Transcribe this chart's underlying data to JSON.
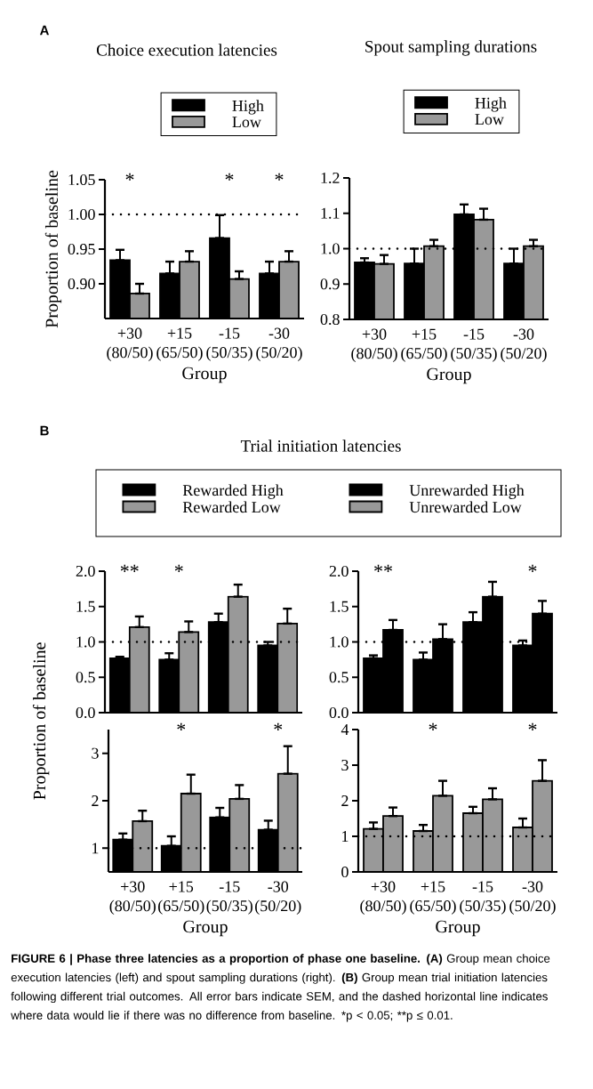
{
  "chart_data": [
    {
      "type": "bar",
      "title": "Choice execution latencies",
      "xlabel": "Group",
      "ylabel": "Proportion of baseline",
      "categories": [
        "+30 (80/50)",
        "+15 (65/50)",
        "-15 (50/35)",
        "-30 (50/20)"
      ],
      "series": [
        {
          "name": "High",
          "color": "#000000",
          "values": [
            0.934,
            0.915,
            0.966,
            0.915
          ],
          "errors": [
            [
              0.934,
              0.949
            ],
            [
              0.915,
              0.932
            ],
            [
              0.966,
              0.999
            ],
            [
              0.915,
              0.932
            ]
          ]
        },
        {
          "name": "Low",
          "color": "#999999",
          "values": [
            0.886,
            0.932,
            0.907,
            0.932
          ],
          "errors": [
            [
              0.886,
              0.9
            ],
            [
              0.932,
              0.947
            ],
            [
              0.907,
              0.918
            ],
            [
              0.932,
              0.947
            ]
          ]
        }
      ],
      "ylim": [
        0.85,
        1.05
      ],
      "yticks": [
        {
          "value": 0.9,
          "label": "0.90"
        },
        {
          "value": 0.95,
          "label": "0.95"
        },
        {
          "value": 1.0,
          "label": "1.00"
        },
        {
          "value": 1.05,
          "label": "1.05"
        }
      ],
      "legend": "top",
      "ref_lines": [
        {
          "axis": "y",
          "value": 1,
          "color": "#000000",
          "line_style": "dotted"
        }
      ],
      "annotations": [
        "A",
        "*",
        "*",
        "*"
      ]
    },
    {
      "type": "bar",
      "title": "Spout sampling durations",
      "xlabel": "Group",
      "categories": [
        "+30 (80/50)",
        "+15 (65/50)",
        "-15 (50/35)",
        "-30 (50/20)"
      ],
      "series": [
        {
          "name": "High",
          "color": "#000000",
          "values": [
            0.961,
            0.958,
            1.097,
            0.958
          ],
          "errors": [
            [
              0.961,
              0.973
            ],
            [
              0.958,
              1.0
            ],
            [
              1.097,
              1.125
            ],
            [
              0.958,
              1.0
            ]
          ]
        },
        {
          "name": "Low",
          "color": "#999999",
          "values": [
            0.957,
            1.007,
            1.082,
            1.007
          ],
          "errors": [
            [
              0.957,
              0.982
            ],
            [
              1.007,
              1.025
            ],
            [
              1.082,
              1.113
            ],
            [
              1.007,
              1.025
            ]
          ]
        }
      ],
      "ylim": [
        0.8,
        1.2
      ],
      "yticks": [
        {
          "value": 0.8,
          "label": "0.8"
        },
        {
          "value": 0.9,
          "label": "0.9"
        },
        {
          "value": 1.0,
          "label": "1.0"
        },
        {
          "value": 1.1,
          "label": "1.1"
        },
        {
          "value": 1.2,
          "label": "1.2"
        }
      ],
      "legend": "top",
      "ref_lines": [
        {
          "axis": "y",
          "value": 1,
          "color": "#000000",
          "line_style": "dotted"
        }
      ]
    },
    {
      "type": "bar",
      "title": "Trial initiation latencies",
      "categories": [
        null,
        null,
        null,
        null
      ],
      "tick_labels": "y",
      "series": [
        {
          "name": "Rewarded High",
          "color": "#000000",
          "values": [
            0.77,
            0.75,
            1.28,
            0.95
          ],
          "errors": [
            [
              0.77,
              0.79
            ],
            [
              0.75,
              0.84
            ],
            [
              1.28,
              1.4
            ],
            [
              0.95,
              1.0
            ]
          ]
        },
        {
          "name": "Rewarded Low",
          "color": "#999999",
          "values": [
            1.21,
            1.14,
            1.64,
            1.26
          ],
          "errors": [
            [
              1.21,
              1.36
            ],
            [
              1.14,
              1.29
            ],
            [
              1.64,
              1.81
            ],
            [
              1.26,
              1.47
            ]
          ]
        }
      ],
      "ylim": [
        0,
        2
      ],
      "yticks": [
        {
          "value": 0,
          "label": "0.0"
        },
        {
          "value": 0.5,
          "label": "0.5"
        },
        {
          "value": 1,
          "label": "1.0"
        },
        {
          "value": 1.5,
          "label": "1.5"
        },
        {
          "value": 2,
          "label": "2.0"
        }
      ],
      "legend": "top",
      "ref_lines": [
        {
          "axis": "y",
          "value": 1,
          "color": "#000000",
          "line_style": "dotted"
        }
      ],
      "annotations": [
        "B",
        "**",
        "*"
      ]
    },
    {
      "type": "bar",
      "categories": [
        null,
        null,
        null,
        null
      ],
      "tick_labels": "y",
      "series": [
        {
          "color": "#000000",
          "values": [
            0.77,
            0.75,
            1.28,
            0.95
          ],
          "errors": [
            [
              0.77,
              0.81
            ],
            [
              0.75,
              0.85
            ],
            [
              1.28,
              1.42
            ],
            [
              0.95,
              1.02
            ]
          ]
        },
        {
          "color": "#000000",
          "values": [
            1.17,
            1.04,
            1.64,
            1.4
          ],
          "errors": [
            [
              1.17,
              1.31
            ],
            [
              1.04,
              1.25
            ],
            [
              1.64,
              1.85
            ],
            [
              1.4,
              1.58
            ]
          ]
        }
      ],
      "ylim": [
        0,
        2
      ],
      "yticks": [
        {
          "value": 0,
          "label": "0.0"
        },
        {
          "value": 0.5,
          "label": "0.5"
        },
        {
          "value": 1,
          "label": "1.0"
        },
        {
          "value": 1.5,
          "label": "1.5"
        },
        {
          "value": 2,
          "label": "2.0"
        }
      ],
      "ref_lines": [
        {
          "axis": "y",
          "value": 1,
          "color": "#000000",
          "line_style": "dotted"
        }
      ],
      "annotations": [
        "**",
        "*"
      ]
    },
    {
      "type": "bar",
      "xlabel": "Group",
      "ylabel": "Proportion of baseline",
      "categories": [
        "+30 (80/50)",
        "+15 (65/50)",
        "-15 (50/35)",
        "-30 (50/20)"
      ],
      "series": [
        {
          "name": "Unrewarded High",
          "color": "#000000",
          "values": [
            1.18,
            1.05,
            1.65,
            1.39
          ],
          "errors": [
            [
              1.18,
              1.31
            ],
            [
              1.05,
              1.25
            ],
            [
              1.65,
              1.85
            ],
            [
              1.39,
              1.58
            ]
          ]
        },
        {
          "name": "Unrewarded Low",
          "color": "#999999",
          "values": [
            1.57,
            2.15,
            2.04,
            2.57
          ],
          "errors": [
            [
              1.57,
              1.79
            ],
            [
              2.15,
              2.55
            ],
            [
              2.04,
              2.33
            ],
            [
              2.57,
              3.15
            ]
          ]
        }
      ],
      "ylim": [
        0.5,
        3.5
      ],
      "yticks": [
        1,
        2,
        3
      ],
      "legend": "top",
      "ref_lines": [
        {
          "axis": "y",
          "value": 1,
          "color": "#000000",
          "line_style": "dotted"
        }
      ],
      "annotations": [
        "*",
        "*"
      ]
    },
    {
      "type": "bar",
      "xlabel": "Group",
      "categories": [
        "+30 (80/50)",
        "+15 (65/50)",
        "-15 (50/35)",
        "-30 (50/20)"
      ],
      "series": [
        {
          "color": "#999999",
          "values": [
            1.21,
            1.15,
            1.65,
            1.25
          ],
          "errors": [
            [
              1.21,
              1.39
            ],
            [
              1.15,
              1.32
            ],
            [
              1.65,
              1.83
            ],
            [
              1.25,
              1.5
            ]
          ]
        },
        {
          "color": "#999999",
          "values": [
            1.57,
            2.14,
            2.04,
            2.56
          ],
          "errors": [
            [
              1.57,
              1.81
            ],
            [
              2.14,
              2.56
            ],
            [
              2.04,
              2.35
            ],
            [
              2.56,
              3.14
            ]
          ]
        }
      ],
      "ylim": [
        0,
        4
      ],
      "yticks": [
        0,
        1,
        2,
        3,
        4
      ],
      "ref_lines": [
        {
          "axis": "y",
          "value": 1,
          "color": "#000000",
          "line_style": "dotted"
        }
      ],
      "annotations": [
        "*",
        "*",
        "**FIGURE 6 | Phase three latencies as a proportion of phase one baseline.** **(A)** Group mean choice execution latencies (left) and spout sampling durations (right). **(B)** Group mean trial initiation latencies following different trial outcomes. All error bars indicate SEM, and the dashed horizontal line indicates where data would lie if there was no difference from baseline.",
        "*p < 0.05; **p ≤ 0.01."
      ]
    }
  ]
}
